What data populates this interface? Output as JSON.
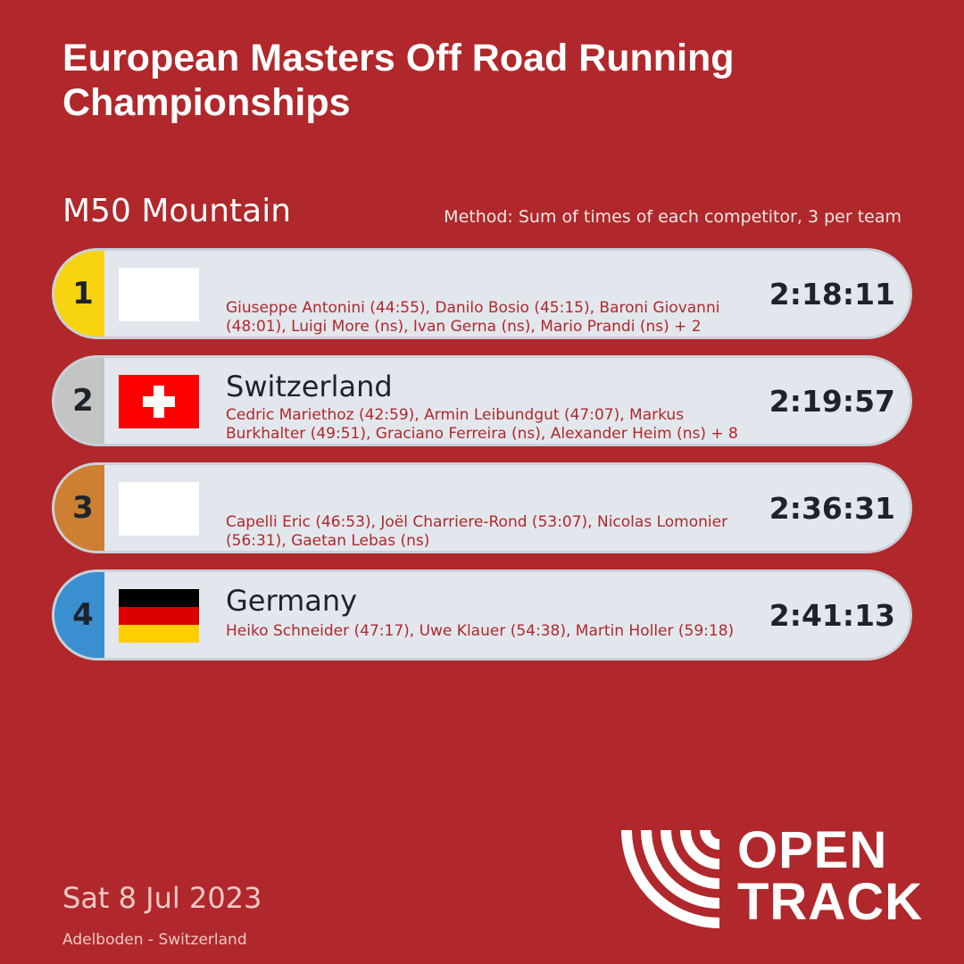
{
  "title": "European Masters Off Road Running Championships",
  "event": "M50 Mountain",
  "method": "Method: Sum of times of each competitor, 3 per team",
  "colors": {
    "background": "#b0282b",
    "row": "#e2e7ed",
    "gold": "#f7d40f",
    "silver": "#c4c4c4",
    "bronze": "#cd8032",
    "fourth": "#3a8fd0"
  },
  "results": [
    {
      "rank": "1",
      "team": "",
      "flag": "blank-flag",
      "members": "Giuseppe Antonini (44:55), Danilo Bosio (45:15), Baroni Giovanni (48:01), Luigi More (ns), Ivan Gerna (ns), Mario Prandi (ns) + 2",
      "time": "2:18:11"
    },
    {
      "rank": "2",
      "team": "Switzerland",
      "flag": "switzerland-flag",
      "members": "Cedric Mariethoz (42:59), Armin Leibundgut (47:07), Markus Burkhalter (49:51), Graciano Ferreira (ns), Alexander Heim (ns) + 8",
      "time": "2:19:57"
    },
    {
      "rank": "3",
      "team": "",
      "flag": "blank-flag",
      "members": "Capelli Eric (46:53), Joël Charriere-Rond (53:07), Nicolas Lomonier (56:31), Gaetan Lebas (ns)",
      "time": "2:36:31"
    },
    {
      "rank": "4",
      "team": "Germany",
      "flag": "germany-flag",
      "members": "Heiko Schneider (47:17), Uwe Klauer (54:38), Martin Holler (59:18)",
      "time": "2:41:13"
    }
  ],
  "footer": {
    "date": "Sat 8 Jul 2023",
    "venue": "Adelboden - Switzerland",
    "logo_line1": "OPEN",
    "logo_line2": "TRACK"
  }
}
